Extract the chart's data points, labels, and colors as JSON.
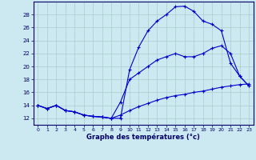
{
  "xlabel": "Graphe des températures (°c)",
  "background_color": "#cce8f0",
  "grid_color": "#aacccc",
  "line_color": "#0000cc",
  "xlim": [
    -0.5,
    23.5
  ],
  "ylim": [
    11,
    30
  ],
  "xticks": [
    0,
    1,
    2,
    3,
    4,
    5,
    6,
    7,
    8,
    9,
    10,
    11,
    12,
    13,
    14,
    15,
    16,
    17,
    18,
    19,
    20,
    21,
    22,
    23
  ],
  "yticks": [
    12,
    14,
    16,
    18,
    20,
    22,
    24,
    26,
    28
  ],
  "series1_x": [
    0,
    1,
    2,
    3,
    4,
    5,
    6,
    7,
    8,
    9,
    10,
    11,
    12,
    13,
    14,
    15,
    16,
    17,
    18,
    19,
    20,
    21,
    22,
    23
  ],
  "series1_y": [
    14.0,
    13.5,
    14.0,
    13.2,
    13.0,
    12.5,
    12.3,
    12.2,
    12.0,
    12.0,
    19.5,
    23.0,
    25.5,
    27.0,
    28.0,
    29.2,
    29.3,
    28.5,
    27.0,
    26.5,
    25.5,
    20.5,
    18.5,
    17.0
  ],
  "series2_x": [
    0,
    1,
    2,
    3,
    4,
    5,
    6,
    7,
    8,
    9,
    10,
    11,
    12,
    13,
    14,
    15,
    16,
    17,
    18,
    19,
    20,
    21,
    22,
    23
  ],
  "series2_y": [
    14.0,
    13.5,
    14.0,
    13.2,
    13.0,
    12.5,
    12.3,
    12.2,
    12.0,
    14.5,
    18.0,
    19.0,
    20.0,
    21.0,
    21.5,
    22.0,
    21.5,
    21.5,
    22.0,
    22.8,
    23.2,
    22.0,
    18.5,
    17.0
  ],
  "series3_x": [
    0,
    1,
    2,
    3,
    4,
    5,
    6,
    7,
    8,
    9,
    10,
    11,
    12,
    13,
    14,
    15,
    16,
    17,
    18,
    19,
    20,
    21,
    22,
    23
  ],
  "series3_y": [
    14.0,
    13.5,
    14.0,
    13.2,
    13.0,
    12.5,
    12.3,
    12.2,
    12.0,
    12.5,
    13.2,
    13.8,
    14.3,
    14.8,
    15.2,
    15.5,
    15.7,
    16.0,
    16.2,
    16.5,
    16.8,
    17.0,
    17.2,
    17.3
  ]
}
